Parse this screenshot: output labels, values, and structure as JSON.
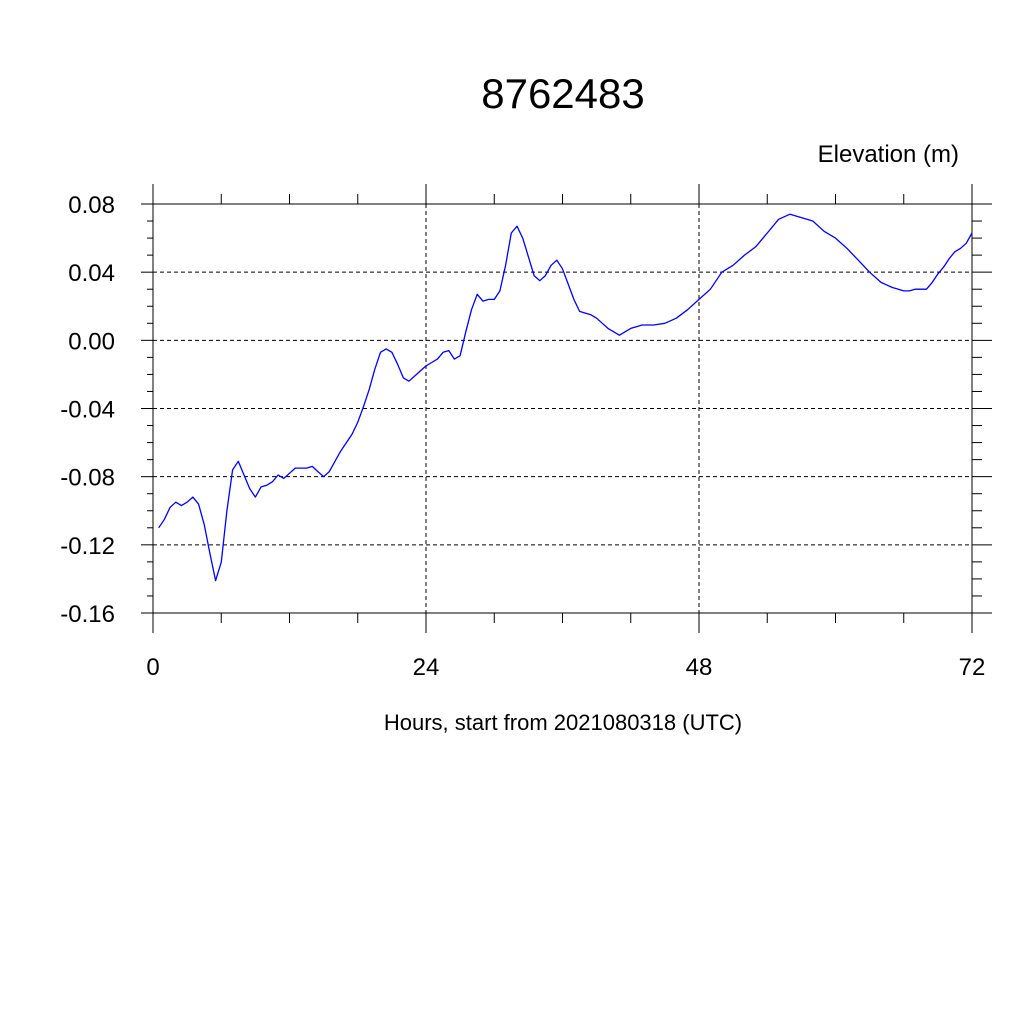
{
  "chart_data": {
    "type": "line",
    "title": "8762483",
    "ylabel": "Elevation (m)",
    "xlabel": "Hours, start from 2021080318 (UTC)",
    "xlim": [
      0,
      72
    ],
    "ylim": [
      -0.16,
      0.08
    ],
    "xticks": [
      0,
      24,
      48,
      72
    ],
    "yticks": [
      -0.16,
      -0.12,
      -0.08,
      -0.04,
      0.0,
      0.04,
      0.08
    ],
    "ytick_labels": [
      "-0.16",
      "-0.12",
      "-0.08",
      "-0.04",
      "0.00",
      "0.04",
      "0.08"
    ],
    "xtick_labels": [
      "0",
      "24",
      "48",
      "72"
    ],
    "grid": true,
    "series": [
      {
        "color": "#0000ff",
        "x": [
          0.5,
          1.0,
          1.5,
          2.0,
          2.5,
          3.0,
          3.5,
          4.0,
          4.5,
          5.0,
          5.5,
          6.0,
          6.5,
          7.0,
          7.5,
          8.0,
          8.5,
          9.0,
          9.5,
          10.0,
          10.5,
          11.0,
          11.5,
          12.0,
          12.5,
          13.0,
          13.5,
          14.0,
          14.5,
          15.0,
          15.5,
          16.0,
          16.5,
          17.0,
          17.5,
          18.0,
          18.5,
          19.0,
          19.5,
          20.0,
          20.5,
          21.0,
          21.5,
          22.0,
          22.5,
          23.0,
          23.5,
          24.0,
          24.5,
          25.0,
          25.5,
          26.0,
          26.5,
          27.0,
          27.5,
          28.0,
          28.5,
          29.0,
          29.5,
          30.0,
          30.5,
          31.0,
          31.5,
          32.0,
          32.5,
          33.0,
          33.5,
          34.0,
          34.5,
          35.0,
          35.5,
          36.0,
          36.5,
          37.0,
          37.5,
          38.0,
          38.5,
          39.0,
          39.5,
          40.0,
          41.0,
          42.0,
          43.0,
          44.0,
          45.0,
          46.0,
          47.0,
          48.0,
          49.0,
          50.0,
          51.0,
          52.0,
          53.0,
          54.0,
          55.0,
          56.0,
          57.0,
          58.0,
          59.0,
          60.0,
          61.0,
          62.0,
          63.0,
          64.0,
          65.0,
          66.0,
          66.5,
          67.0,
          67.5,
          68.0,
          68.5,
          69.0,
          69.5,
          70.0,
          70.5,
          71.0,
          71.5,
          72.0
        ],
        "y": [
          -0.11,
          -0.105,
          -0.098,
          -0.095,
          -0.097,
          -0.095,
          -0.092,
          -0.096,
          -0.108,
          -0.125,
          -0.141,
          -0.13,
          -0.1,
          -0.076,
          -0.071,
          -0.079,
          -0.087,
          -0.092,
          -0.086,
          -0.085,
          -0.083,
          -0.079,
          -0.081,
          -0.078,
          -0.075,
          -0.075,
          -0.075,
          -0.074,
          -0.077,
          -0.08,
          -0.077,
          -0.071,
          -0.065,
          -0.06,
          -0.055,
          -0.048,
          -0.039,
          -0.029,
          -0.017,
          -0.007,
          -0.005,
          -0.007,
          -0.014,
          -0.022,
          -0.024,
          -0.021,
          -0.018,
          -0.015,
          -0.013,
          -0.011,
          -0.007,
          -0.006,
          -0.011,
          -0.009,
          0.005,
          0.018,
          0.027,
          0.023,
          0.024,
          0.024,
          0.029,
          0.044,
          0.063,
          0.067,
          0.06,
          0.049,
          0.038,
          0.035,
          0.038,
          0.044,
          0.047,
          0.042,
          0.033,
          0.024,
          0.017,
          0.016,
          0.015,
          0.013,
          0.01,
          0.007,
          0.003,
          0.007,
          0.009,
          0.009,
          0.01,
          0.013,
          0.018,
          0.024,
          0.03,
          0.04,
          0.044,
          0.05,
          0.055,
          0.063,
          0.071,
          0.074,
          0.072,
          0.07,
          0.064,
          0.06,
          0.054,
          0.047,
          0.04,
          0.034,
          0.031,
          0.029,
          0.029,
          0.03,
          0.03,
          0.03,
          0.034,
          0.039,
          0.043,
          0.048,
          0.052,
          0.054,
          0.057,
          0.063
        ]
      }
    ]
  }
}
